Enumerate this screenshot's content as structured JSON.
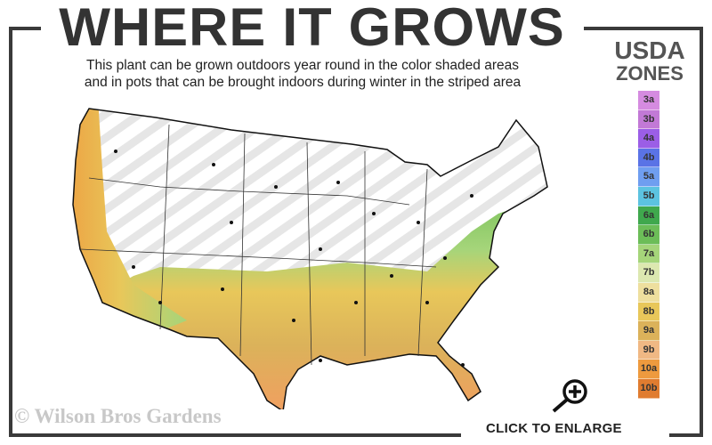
{
  "header": {
    "title": "WHERE IT GROWS",
    "subtitle_line1": "This plant can be grown outdoors year round in the color shaded areas",
    "subtitle_line2": "and in pots that can be brought indoors during winter in the striped area"
  },
  "legend": {
    "title_line1": "USDA",
    "title_line2": "ZONES",
    "zones": [
      {
        "label": "3a",
        "color": "#d58be0"
      },
      {
        "label": "3b",
        "color": "#c279d6"
      },
      {
        "label": "4a",
        "color": "#9b5ee6"
      },
      {
        "label": "4b",
        "color": "#5a73e6"
      },
      {
        "label": "5a",
        "color": "#6f9ef0"
      },
      {
        "label": "5b",
        "color": "#5cc3e0"
      },
      {
        "label": "6a",
        "color": "#3fa84d"
      },
      {
        "label": "6b",
        "color": "#6cbd58"
      },
      {
        "label": "7a",
        "color": "#a5d57a"
      },
      {
        "label": "7b",
        "color": "#dce8b0"
      },
      {
        "label": "8a",
        "color": "#eedf9e"
      },
      {
        "label": "8b",
        "color": "#e8c75a"
      },
      {
        "label": "9a",
        "color": "#dbb25a"
      },
      {
        "label": "9b",
        "color": "#f0b884"
      },
      {
        "label": "10a",
        "color": "#ee9a3e"
      },
      {
        "label": "10b",
        "color": "#e07c30"
      }
    ]
  },
  "map": {
    "striped_area": "pots brought indoors in winter",
    "icon": "us-map"
  },
  "footer": {
    "copyright": "© Wilson Bros Gardens",
    "enlarge_label": "CLICK TO ENLARGE",
    "enlarge_icon": "magnifier-plus-icon"
  }
}
